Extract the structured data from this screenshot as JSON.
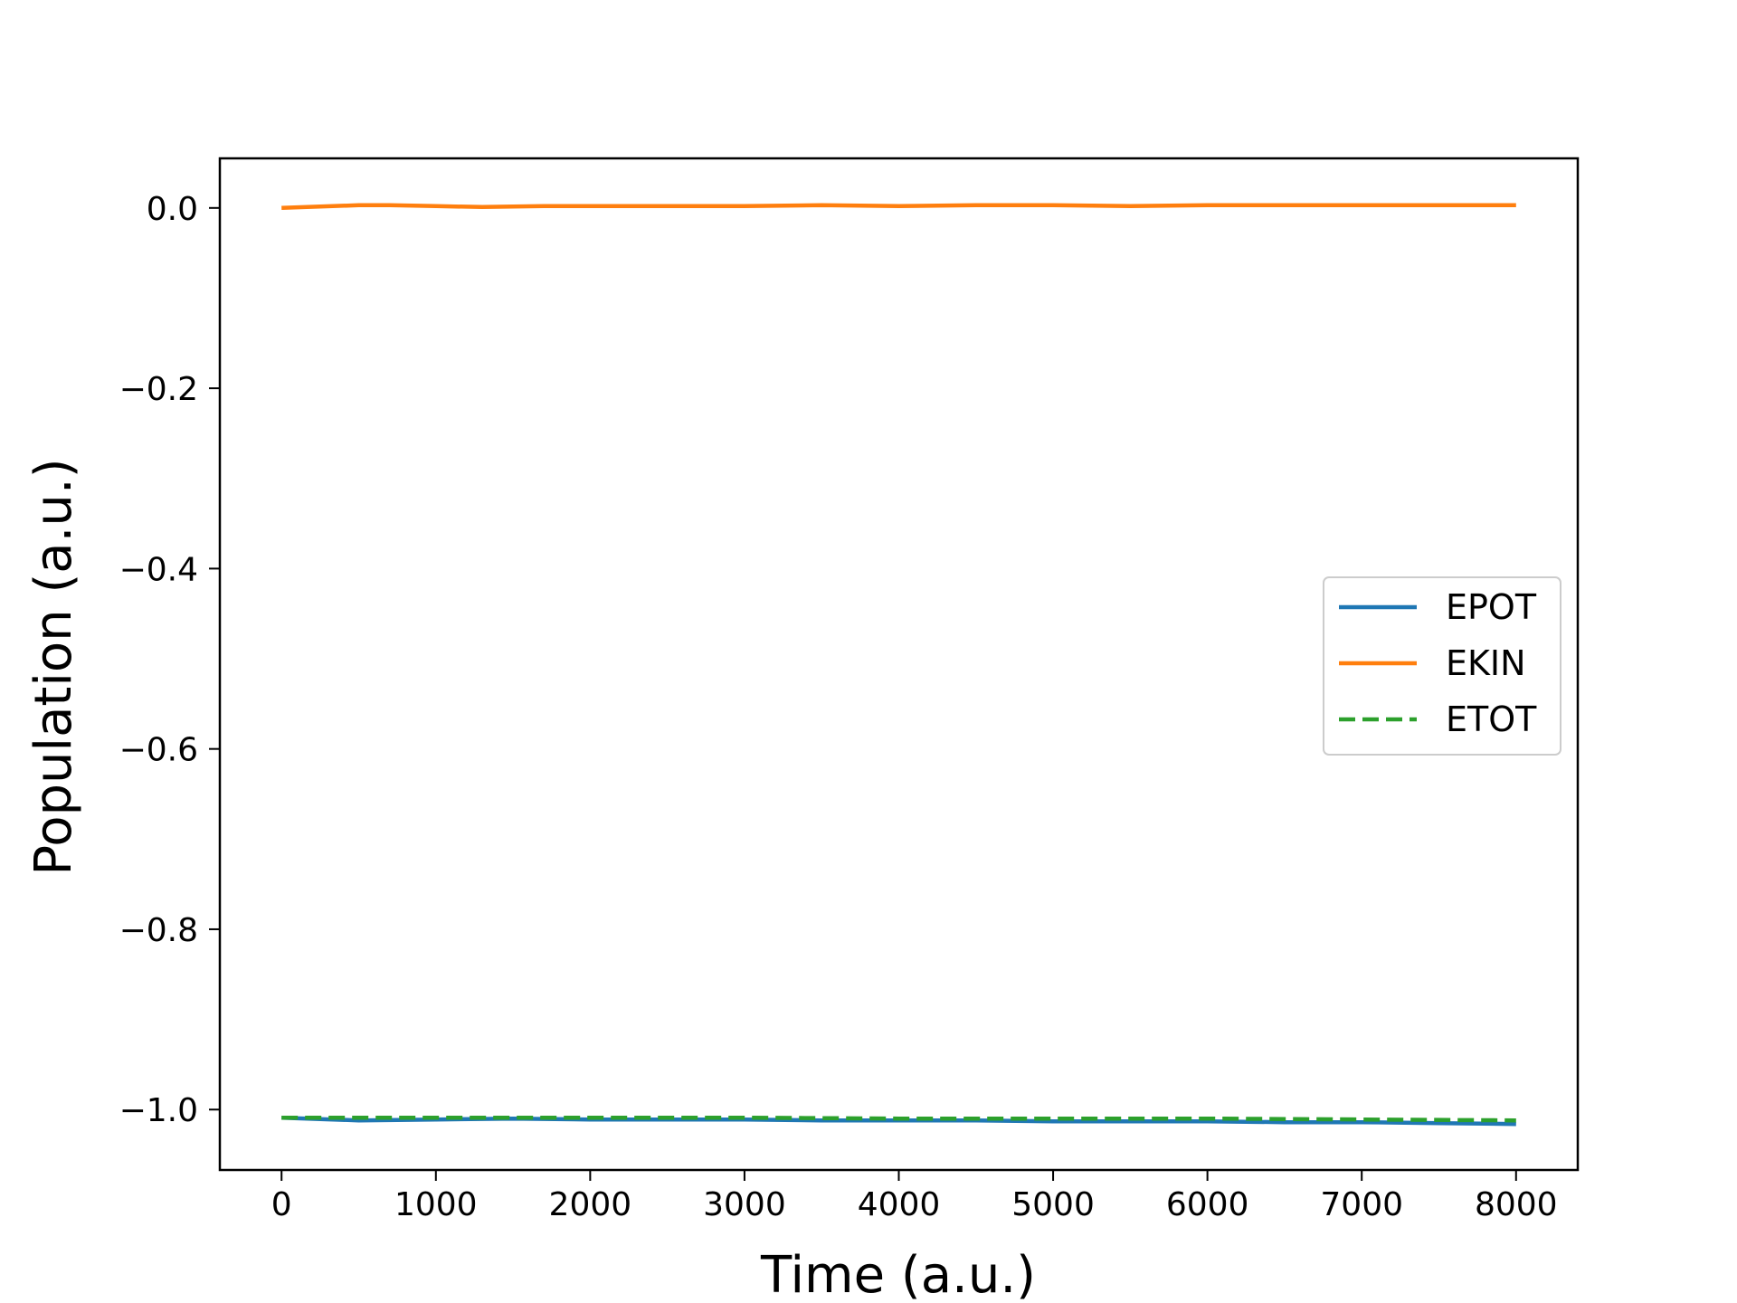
{
  "chart_data": {
    "type": "line",
    "title": "",
    "xlabel": "Time (a.u.)",
    "ylabel": "Population (a.u.)",
    "xlim": [
      -400,
      8400
    ],
    "ylim": [
      -1.067,
      0.055
    ],
    "xticks": [
      0,
      1000,
      2000,
      3000,
      4000,
      5000,
      6000,
      7000,
      8000
    ],
    "xtick_labels": [
      "0",
      "1000",
      "2000",
      "3000",
      "4000",
      "5000",
      "6000",
      "7000",
      "8000"
    ],
    "yticks": [
      0.0,
      -0.2,
      -0.4,
      -0.6,
      -0.8,
      -1.0
    ],
    "ytick_labels": [
      "0.0",
      "−0.2",
      "−0.4",
      "−0.6",
      "−0.8",
      "−1.0"
    ],
    "grid": false,
    "legend_position": "center-right",
    "series": [
      {
        "name": "EPOT",
        "color": "#1f77b4",
        "dash": "solid",
        "x": [
          0,
          500,
          1000,
          1500,
          2000,
          2500,
          3000,
          3500,
          4000,
          4500,
          5000,
          5500,
          6000,
          6500,
          7000,
          7500,
          8000
        ],
        "y": [
          -1.009,
          -1.012,
          -1.011,
          -1.01,
          -1.011,
          -1.011,
          -1.011,
          -1.012,
          -1.012,
          -1.012,
          -1.013,
          -1.013,
          -1.013,
          -1.014,
          -1.014,
          -1.015,
          -1.016
        ]
      },
      {
        "name": "EKIN",
        "color": "#ff7f0e",
        "dash": "solid",
        "x": [
          0,
          500,
          700,
          1000,
          1300,
          1700,
          2000,
          2500,
          3000,
          3500,
          4000,
          4500,
          5000,
          5500,
          6000,
          6500,
          7000,
          7500,
          8000
        ],
        "y": [
          0.0,
          0.003,
          0.003,
          0.002,
          0.001,
          0.002,
          0.002,
          0.002,
          0.002,
          0.003,
          0.002,
          0.003,
          0.003,
          0.002,
          0.003,
          0.003,
          0.003,
          0.003,
          0.003
        ]
      },
      {
        "name": "ETOT",
        "color": "#2ca02c",
        "dash": "dashed",
        "x": [
          0,
          1000,
          2000,
          3000,
          4000,
          5000,
          6000,
          7000,
          8000
        ],
        "y": [
          -1.009,
          -1.009,
          -1.009,
          -1.009,
          -1.01,
          -1.01,
          -1.01,
          -1.011,
          -1.012
        ]
      }
    ]
  }
}
